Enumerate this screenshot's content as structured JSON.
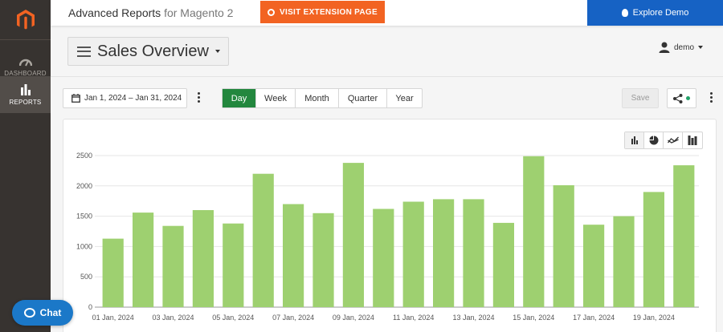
{
  "sidebar": {
    "items": [
      {
        "label": "DASHBOARD",
        "icon": "gauge-icon",
        "active": false
      },
      {
        "label": "REPORTS",
        "icon": "bar-chart-icon",
        "active": true
      }
    ]
  },
  "topbar": {
    "brand": "Advanced Reports",
    "brand_sub": "for Magento 2",
    "visit_label": "VISIT EXTENSION PAGE",
    "demo_label": "Explore Demo"
  },
  "header": {
    "title": "Sales Overview",
    "user": "demo"
  },
  "toolbar": {
    "date_range": "Jan 1, 2024 – Jan 31, 2024",
    "periods": [
      "Day",
      "Week",
      "Month",
      "Quarter",
      "Year"
    ],
    "active_period": "Day",
    "save_label": "Save"
  },
  "colors": {
    "bar": "#9ed070",
    "accent_green": "#23873e",
    "visit_orange": "#f26322",
    "demo_blue": "#1662c4",
    "sidebar": "#373330"
  },
  "chat": {
    "label": "Chat"
  },
  "chart_data": {
    "type": "bar",
    "x": [
      "01 Jan, 2024",
      "02 Jan, 2024",
      "03 Jan, 2024",
      "04 Jan, 2024",
      "05 Jan, 2024",
      "06 Jan, 2024",
      "07 Jan, 2024",
      "08 Jan, 2024",
      "09 Jan, 2024",
      "10 Jan, 2024",
      "11 Jan, 2024",
      "12 Jan, 2024",
      "13 Jan, 2024",
      "14 Jan, 2024",
      "15 Jan, 2024",
      "16 Jan, 2024",
      "17 Jan, 2024",
      "18 Jan, 2024",
      "19 Jan, 2024",
      "20 Jan, 2024"
    ],
    "x_tick_labels": [
      "01 Jan, 2024",
      "03 Jan, 2024",
      "05 Jan, 2024",
      "07 Jan, 2024",
      "09 Jan, 2024",
      "11 Jan, 2024",
      "13 Jan, 2024",
      "15 Jan, 2024",
      "17 Jan, 2024",
      "19 Jan, 2024"
    ],
    "values": [
      1130,
      1560,
      1340,
      1600,
      1380,
      2200,
      1700,
      1550,
      2380,
      1620,
      1740,
      1780,
      1780,
      1390,
      2490,
      2010,
      1360,
      1500,
      1900,
      2340
    ],
    "yticks": [
      0,
      500,
      1000,
      1500,
      2000,
      2500
    ],
    "ylim": [
      0,
      2500
    ],
    "grid": true,
    "legend": false
  }
}
